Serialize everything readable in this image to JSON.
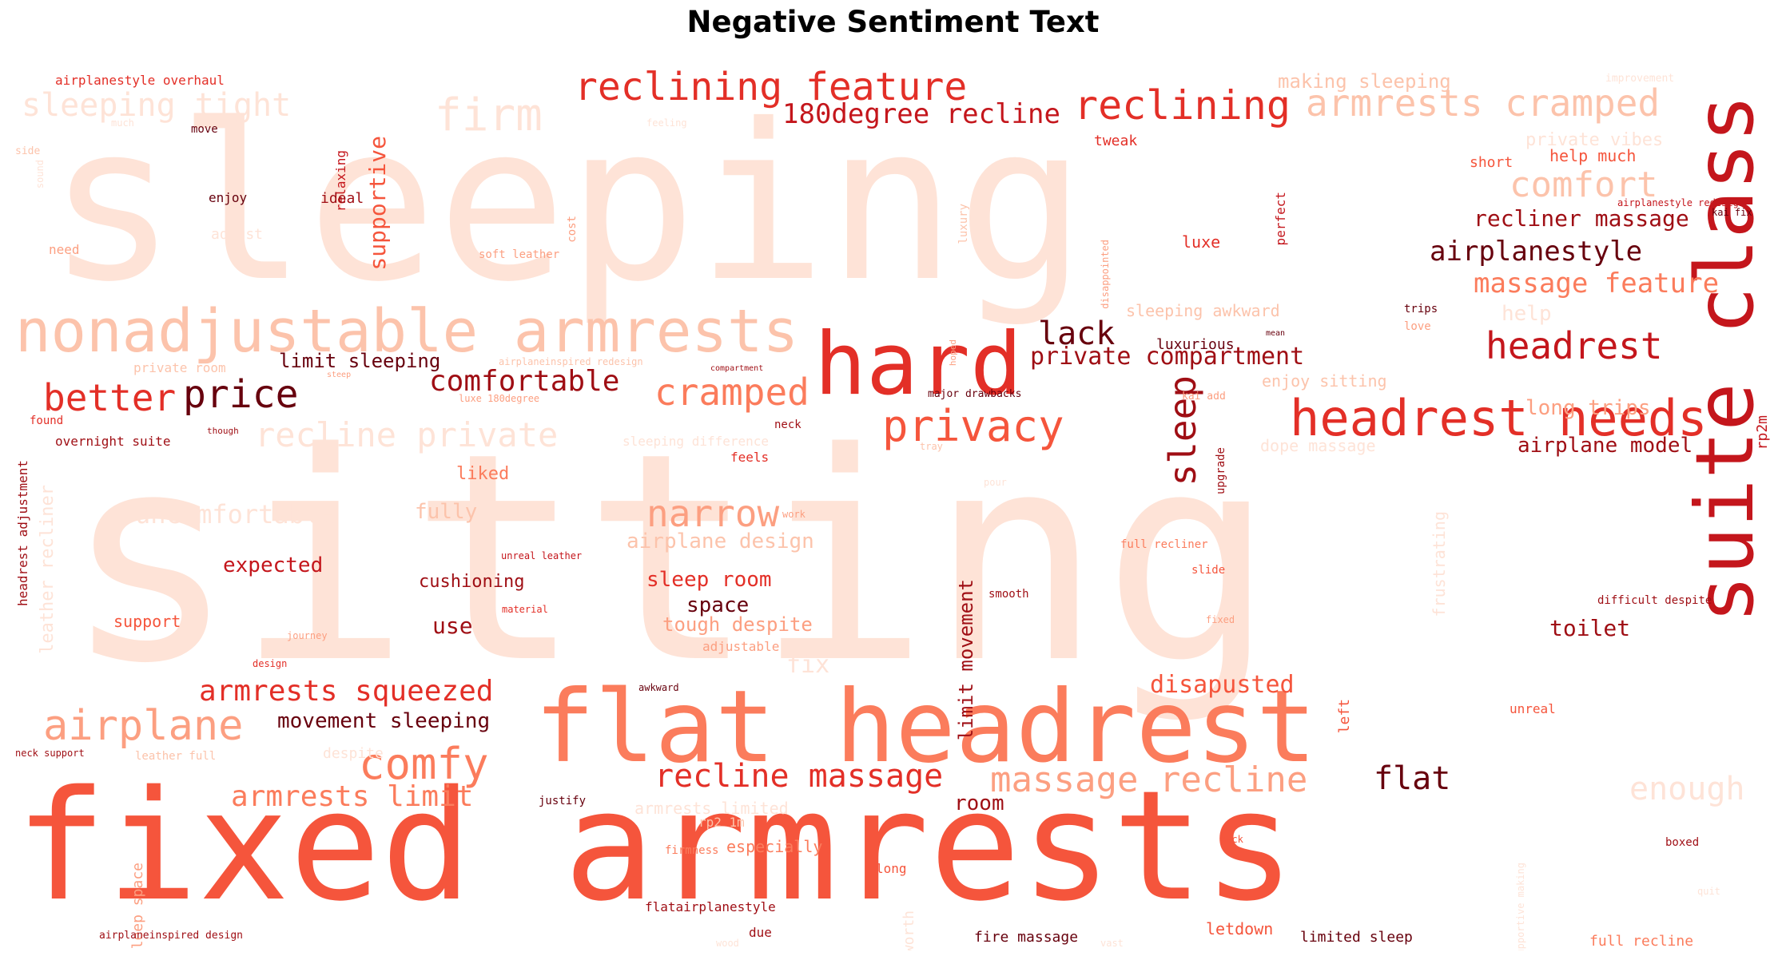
{
  "title": "Negative Sentiment Text",
  "colors": {
    "c0": "#fee3d7",
    "c1": "#fcc3ab",
    "c2": "#fc9f81",
    "c3": "#fb7c5c",
    "c4": "#f5553c",
    "c5": "#e32f27",
    "c6": "#c4161c",
    "c7": "#9f0e14",
    "c8": "#67000d"
  },
  "words": [
    {
      "text": "sitting",
      "color": "c0"
    },
    {
      "text": "sleeping",
      "color": "c0"
    },
    {
      "text": "fixed armrests",
      "color": "c4"
    },
    {
      "text": "flat headrest",
      "color": "c3"
    },
    {
      "text": "suite class",
      "color": "c6"
    },
    {
      "text": "hard",
      "color": "c5"
    },
    {
      "text": "nonadjustable armrests",
      "color": "c1"
    },
    {
      "text": "headrest needs",
      "color": "c5"
    },
    {
      "text": "reclining feature",
      "color": "c5"
    },
    {
      "text": "reclining",
      "color": "c5"
    },
    {
      "text": "armrests cramped",
      "color": "c1"
    },
    {
      "text": "firm",
      "color": "c0"
    },
    {
      "text": "sleeping tight",
      "color": "c0"
    },
    {
      "text": "180degree recline",
      "color": "c6"
    },
    {
      "text": "comfort",
      "color": "c1"
    },
    {
      "text": "airplanestyle",
      "color": "c8"
    },
    {
      "text": "massage feature",
      "color": "c3"
    },
    {
      "text": "recliner massage",
      "color": "c7"
    },
    {
      "text": "headrest",
      "color": "c6"
    },
    {
      "text": "privacy",
      "color": "c4"
    },
    {
      "text": "price",
      "color": "c8"
    },
    {
      "text": "better",
      "color": "c5"
    },
    {
      "text": "comfortable",
      "color": "c7"
    },
    {
      "text": "cramped",
      "color": "c3"
    },
    {
      "text": "lack",
      "color": "c8"
    },
    {
      "text": "private compartment",
      "color": "c7"
    },
    {
      "text": "sleep",
      "color": "c7"
    },
    {
      "text": "recline private",
      "color": "c0"
    },
    {
      "text": "narrow",
      "color": "c2"
    },
    {
      "text": "uncomfortable",
      "color": "c0"
    },
    {
      "text": "comfy",
      "color": "c3"
    },
    {
      "text": "airplane",
      "color": "c2"
    },
    {
      "text": "armrests squeezed",
      "color": "c5"
    },
    {
      "text": "armrests limit",
      "color": "c3"
    },
    {
      "text": "recline massage",
      "color": "c5"
    },
    {
      "text": "massage recline",
      "color": "c2"
    },
    {
      "text": "flat",
      "color": "c8"
    },
    {
      "text": "enough",
      "color": "c0"
    },
    {
      "text": "disapusted",
      "color": "c4"
    },
    {
      "text": "toilet",
      "color": "c7"
    },
    {
      "text": "airplane model",
      "color": "c7"
    },
    {
      "text": "long trips",
      "color": "c2"
    },
    {
      "text": "supportive",
      "color": "c4"
    },
    {
      "text": "limit sleeping",
      "color": "c8"
    },
    {
      "text": "expected",
      "color": "c6"
    },
    {
      "text": "cushioning",
      "color": "c7"
    },
    {
      "text": "sleep room",
      "color": "c5"
    },
    {
      "text": "space",
      "color": "c8"
    },
    {
      "text": "use",
      "color": "c7"
    },
    {
      "text": "tough despite",
      "color": "c2"
    },
    {
      "text": "support",
      "color": "c4"
    },
    {
      "text": "movement sleeping",
      "color": "c8"
    },
    {
      "text": "airplane design",
      "color": "c1"
    },
    {
      "text": "fully",
      "color": "c1"
    },
    {
      "text": "liked",
      "color": "c3"
    },
    {
      "text": "limit movement",
      "color": "c7"
    },
    {
      "text": "making sleeping",
      "color": "c1"
    },
    {
      "text": "private vibes",
      "color": "c0"
    },
    {
      "text": "help much",
      "color": "c4"
    },
    {
      "text": "short",
      "color": "c4"
    },
    {
      "text": "help",
      "color": "c0"
    },
    {
      "text": "sleeping awkward",
      "color": "c1"
    },
    {
      "text": "enjoy sitting",
      "color": "c1"
    },
    {
      "text": "luxurious",
      "color": "c8"
    },
    {
      "text": "luxe",
      "color": "c5"
    },
    {
      "text": "tweak",
      "color": "c5"
    },
    {
      "text": "room",
      "color": "c7"
    },
    {
      "text": "especially",
      "color": "c3"
    },
    {
      "text": "armrests limited",
      "color": "c0"
    },
    {
      "text": "airplanestyle overhaul",
      "color": "c5"
    },
    {
      "text": "overnight suite",
      "color": "c7"
    },
    {
      "text": "headrest adjustment",
      "color": "c7"
    },
    {
      "text": "leather recliner",
      "color": "c0"
    },
    {
      "text": "relaxing",
      "color": "c6"
    },
    {
      "text": "ideal",
      "color": "c7"
    },
    {
      "text": "enjoy",
      "color": "c8"
    },
    {
      "text": "move",
      "color": "c8"
    },
    {
      "text": "adjust",
      "color": "c0"
    },
    {
      "text": "need",
      "color": "c2"
    },
    {
      "text": "soft leather",
      "color": "c2"
    },
    {
      "text": "cost",
      "color": "c2"
    },
    {
      "text": "luxury",
      "color": "c1"
    },
    {
      "text": "disappointed",
      "color": "c2"
    },
    {
      "text": "perfect",
      "color": "c6"
    },
    {
      "text": "private room",
      "color": "c1"
    },
    {
      "text": "found",
      "color": "c5"
    },
    {
      "text": "sleeping difference",
      "color": "c0"
    },
    {
      "text": "dope massage",
      "color": "c0"
    },
    {
      "text": "feels",
      "color": "c5"
    },
    {
      "text": "neck",
      "color": "c7"
    },
    {
      "text": "upgrade",
      "color": "c7"
    },
    {
      "text": "frustrating",
      "color": "c0"
    },
    {
      "text": "rp2m",
      "color": "c6"
    },
    {
      "text": "fix",
      "color": "c0"
    },
    {
      "text": "full recliner",
      "color": "c3"
    },
    {
      "text": "slide",
      "color": "c4"
    },
    {
      "text": "smooth",
      "color": "c7"
    },
    {
      "text": "difficult despite",
      "color": "c7"
    },
    {
      "text": "unreal",
      "color": "c4"
    },
    {
      "text": "left",
      "color": "c4"
    },
    {
      "text": "adjustable",
      "color": "c2"
    },
    {
      "text": "fixed",
      "color": "c2"
    },
    {
      "text": "neck support",
      "color": "c7"
    },
    {
      "text": "leather full",
      "color": "c1"
    },
    {
      "text": "despite",
      "color": "c0"
    },
    {
      "text": "justify",
      "color": "c8"
    },
    {
      "text": "sleep space",
      "color": "c2"
    },
    {
      "text": "rp2 1m",
      "color": "c1"
    },
    {
      "text": "firmness",
      "color": "c3"
    },
    {
      "text": "flatairplanestyle",
      "color": "c7"
    },
    {
      "text": "long",
      "color": "c4"
    },
    {
      "text": "due",
      "color": "c7"
    },
    {
      "text": "fire massage",
      "color": "c8"
    },
    {
      "text": "letdown",
      "color": "c4"
    },
    {
      "text": "limited sleep",
      "color": "c8"
    },
    {
      "text": "full recline",
      "color": "c3"
    },
    {
      "text": "airplaneinspired design",
      "color": "c7"
    },
    {
      "text": "awkward",
      "color": "c8"
    },
    {
      "text": "boxed",
      "color": "c7"
    },
    {
      "text": "back",
      "color": "c4"
    },
    {
      "text": "supportive making",
      "color": "c0"
    },
    {
      "text": "worth",
      "color": "c0"
    },
    {
      "text": "wood",
      "color": "c0"
    },
    {
      "text": "vast",
      "color": "c0"
    },
    {
      "text": "improvement",
      "color": "c0"
    },
    {
      "text": "airplanestyle redesign",
      "color": "c6"
    },
    {
      "text": "kai fix",
      "color": "c8"
    },
    {
      "text": "trips",
      "color": "c8"
    },
    {
      "text": "love",
      "color": "c2"
    },
    {
      "text": "mean",
      "color": "c8"
    },
    {
      "text": "compartment",
      "color": "c7"
    },
    {
      "text": "hoped",
      "color": "c2"
    },
    {
      "text": "major drawbacks",
      "color": "c8"
    },
    {
      "text": "kai add",
      "color": "c2"
    },
    {
      "text": "tray",
      "color": "c1"
    },
    {
      "text": "luxe 180degree",
      "color": "c2"
    },
    {
      "text": "though",
      "color": "c7"
    },
    {
      "text": "airplaneinspired redesign",
      "color": "c1"
    },
    {
      "text": "steep",
      "color": "c2"
    },
    {
      "text": "unreal leather",
      "color": "c6"
    },
    {
      "text": "material",
      "color": "c5"
    },
    {
      "text": "work",
      "color": "c2"
    },
    {
      "text": "journey",
      "color": "c2"
    },
    {
      "text": "design",
      "color": "c5"
    },
    {
      "text": "side",
      "color": "c1"
    },
    {
      "text": "much",
      "color": "c0"
    },
    {
      "text": "sound",
      "color": "c0"
    },
    {
      "text": "feeling",
      "color": "c0"
    },
    {
      "text": "pour",
      "color": "c0"
    },
    {
      "text": "quit",
      "color": "c0"
    }
  ]
}
